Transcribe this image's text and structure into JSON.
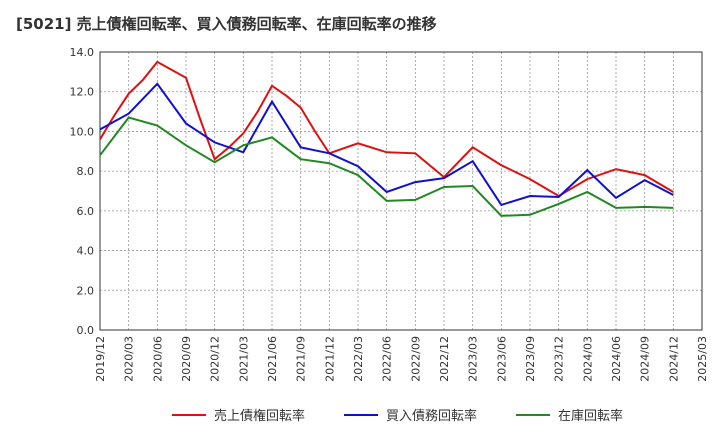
{
  "chart_data": {
    "type": "line",
    "title": "[5021]  売上債権回転率、買入債務回転率、在庫回転率の推移",
    "xlabel": "",
    "ylabel": "",
    "ylim": [
      0,
      14
    ],
    "yticks": [
      "0.0",
      "2.0",
      "4.0",
      "6.0",
      "8.0",
      "10.0",
      "12.0",
      "14.0"
    ],
    "grid": true,
    "legend_position": "bottom",
    "categories": [
      "2019/12",
      "2020/03",
      "2020/06",
      "2020/09",
      "2020/12",
      "2021/03",
      "2021/06",
      "2021/09",
      "2021/12",
      "2022/03",
      "2022/06",
      "2022/09",
      "2022/12",
      "2023/03",
      "2023/06",
      "2023/09",
      "2023/12",
      "2024/03",
      "2024/06",
      "2024/09",
      "2024/12",
      "2025/03"
    ],
    "x_positions": [
      "2019/12",
      "2020/03",
      "2020/06",
      "2020/09",
      "2020/12",
      "2021/03",
      "2021/06",
      "2021/09",
      "2021/12",
      "2022/03",
      "2022/06",
      "2022/09",
      "2022/12",
      "2023/03",
      "2023/06",
      "2023/09",
      "2023/12",
      "2024/03",
      "2024/06",
      "2024/09",
      "2024/12"
    ],
    "series": [
      {
        "name": "売上債権回転率",
        "color": "#dd1111",
        "points": [
          [
            0,
            9.6
          ],
          [
            0.5,
            10.8
          ],
          [
            1,
            11.9
          ],
          [
            1.5,
            12.6
          ],
          [
            2,
            13.5
          ],
          [
            2.5,
            13.1
          ],
          [
            3,
            12.7
          ],
          [
            3.5,
            10.6
          ],
          [
            4,
            8.6
          ],
          [
            4.5,
            9.2
          ],
          [
            5,
            9.9
          ],
          [
            5.5,
            11.0
          ],
          [
            6,
            12.3
          ],
          [
            6.5,
            11.8
          ],
          [
            7,
            11.2
          ],
          [
            7.5,
            10.0
          ],
          [
            8,
            8.9
          ],
          [
            9,
            9.4
          ],
          [
            10,
            8.95
          ],
          [
            11,
            8.9
          ],
          [
            12,
            7.7
          ],
          [
            13,
            9.2
          ],
          [
            14,
            8.3
          ],
          [
            15,
            7.6
          ],
          [
            16,
            6.75
          ],
          [
            17,
            7.6
          ],
          [
            18,
            8.1
          ],
          [
            19,
            7.8
          ],
          [
            20,
            6.95
          ]
        ]
      },
      {
        "name": "買入債務回転率",
        "color": "#1111cc",
        "points": [
          [
            0,
            10.1
          ],
          [
            1,
            10.9
          ],
          [
            2,
            12.4
          ],
          [
            3,
            10.4
          ],
          [
            4,
            9.45
          ],
          [
            5,
            8.95
          ],
          [
            6,
            11.5
          ],
          [
            7,
            9.2
          ],
          [
            8,
            8.9
          ],
          [
            9,
            8.25
          ],
          [
            10,
            6.95
          ],
          [
            11,
            7.45
          ],
          [
            12,
            7.65
          ],
          [
            13,
            8.5
          ],
          [
            14,
            6.3
          ],
          [
            15,
            6.75
          ],
          [
            16,
            6.7
          ],
          [
            17,
            8.05
          ],
          [
            18,
            6.65
          ],
          [
            19,
            7.55
          ],
          [
            20,
            6.8
          ]
        ]
      },
      {
        "name": "在庫回転率",
        "color": "#228822",
        "points": [
          [
            0,
            8.8
          ],
          [
            1,
            10.7
          ],
          [
            2,
            10.3
          ],
          [
            3,
            9.3
          ],
          [
            4,
            8.45
          ],
          [
            5,
            9.3
          ],
          [
            6,
            9.7
          ],
          [
            7,
            8.6
          ],
          [
            8,
            8.4
          ],
          [
            9,
            7.8
          ],
          [
            10,
            6.5
          ],
          [
            11,
            6.55
          ],
          [
            12,
            7.2
          ],
          [
            13,
            7.25
          ],
          [
            14,
            5.75
          ],
          [
            15,
            5.8
          ],
          [
            16,
            6.35
          ],
          [
            17,
            6.95
          ],
          [
            18,
            6.15
          ],
          [
            19,
            6.2
          ],
          [
            20,
            6.15
          ]
        ]
      }
    ]
  }
}
